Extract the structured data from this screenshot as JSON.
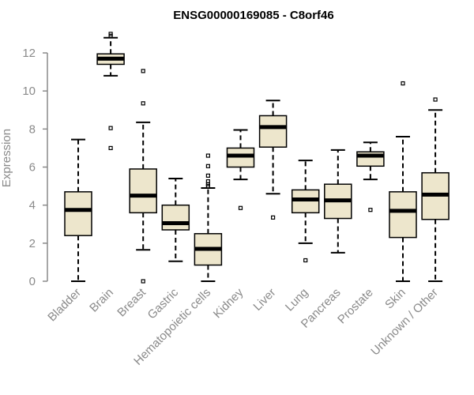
{
  "chart_data": {
    "type": "boxplot",
    "title": "ENSG00000169085 - C8orf46",
    "xlabel": "",
    "ylabel": "Expression",
    "ylim": [
      0,
      12
    ],
    "yticks": [
      0,
      2,
      4,
      6,
      8,
      10,
      12
    ],
    "colors": {
      "box_fill": "#ede6cc",
      "stroke": "#000000",
      "axis": "#8a8a8a"
    },
    "categories": [
      "Bladder",
      "Brain",
      "Breast",
      "Gastric",
      "Hematopoietic cells",
      "Kidney",
      "Liver",
      "Lung",
      "Pancreas",
      "Prostate",
      "Skin",
      "Unknown / Other"
    ],
    "boxes": [
      {
        "name": "Bladder",
        "whisker_low": 0.0,
        "q1": 2.4,
        "median": 3.75,
        "q3": 4.7,
        "whisker_high": 7.45,
        "outliers": []
      },
      {
        "name": "Brain",
        "whisker_low": 10.8,
        "q1": 11.4,
        "median": 11.7,
        "q3": 11.95,
        "whisker_high": 12.8,
        "outliers": [
          13.0,
          12.9,
          8.05,
          7.0
        ]
      },
      {
        "name": "Breast",
        "whisker_low": 1.65,
        "q1": 3.6,
        "median": 4.5,
        "q3": 5.9,
        "whisker_high": 8.35,
        "outliers": [
          11.05,
          9.35,
          0.0
        ]
      },
      {
        "name": "Gastric",
        "whisker_low": 1.05,
        "q1": 2.7,
        "median": 3.05,
        "q3": 4.0,
        "whisker_high": 5.4,
        "outliers": []
      },
      {
        "name": "Hematopoietic cells",
        "whisker_low": 0.0,
        "q1": 0.85,
        "median": 1.7,
        "q3": 2.5,
        "whisker_high": 4.9,
        "outliers": [
          6.6,
          6.05,
          5.55,
          5.25,
          5.1,
          5.0
        ]
      },
      {
        "name": "Kidney",
        "whisker_low": 5.35,
        "q1": 6.0,
        "median": 6.6,
        "q3": 7.0,
        "whisker_high": 7.95,
        "outliers": [
          3.85
        ]
      },
      {
        "name": "Liver",
        "whisker_low": 4.6,
        "q1": 7.05,
        "median": 8.1,
        "q3": 8.7,
        "whisker_high": 9.5,
        "outliers": [
          3.35
        ]
      },
      {
        "name": "Lung",
        "whisker_low": 2.0,
        "q1": 3.6,
        "median": 4.3,
        "q3": 4.8,
        "whisker_high": 6.35,
        "outliers": [
          1.1
        ]
      },
      {
        "name": "Pancreas",
        "whisker_low": 1.5,
        "q1": 3.3,
        "median": 4.25,
        "q3": 5.1,
        "whisker_high": 6.9,
        "outliers": []
      },
      {
        "name": "Prostate",
        "whisker_low": 5.35,
        "q1": 6.05,
        "median": 6.6,
        "q3": 6.8,
        "whisker_high": 7.3,
        "outliers": [
          3.75
        ]
      },
      {
        "name": "Skin",
        "whisker_low": 0.0,
        "q1": 2.3,
        "median": 3.7,
        "q3": 4.7,
        "whisker_high": 7.6,
        "outliers": [
          10.4
        ]
      },
      {
        "name": "Unknown / Other",
        "whisker_low": 0.0,
        "q1": 3.25,
        "median": 4.55,
        "q3": 5.7,
        "whisker_high": 9.0,
        "outliers": [
          9.55
        ]
      }
    ]
  }
}
